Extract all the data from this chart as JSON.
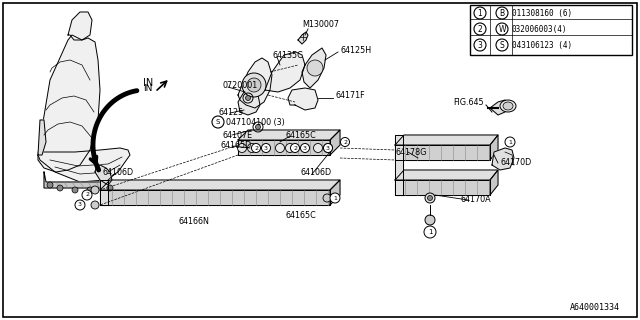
{
  "bg_color": "#ffffff",
  "fig_width": 6.4,
  "fig_height": 3.2,
  "dpi": 100,
  "footer_text": "A640001334",
  "legend_rows": [
    {
      "num": "1",
      "circle_type": "B",
      "code": "011308160 (6)"
    },
    {
      "num": "2",
      "circle_type": "W",
      "code": "032006003(4)"
    },
    {
      "num": "3",
      "circle_type": "S",
      "code": "043106123 (4)"
    }
  ]
}
